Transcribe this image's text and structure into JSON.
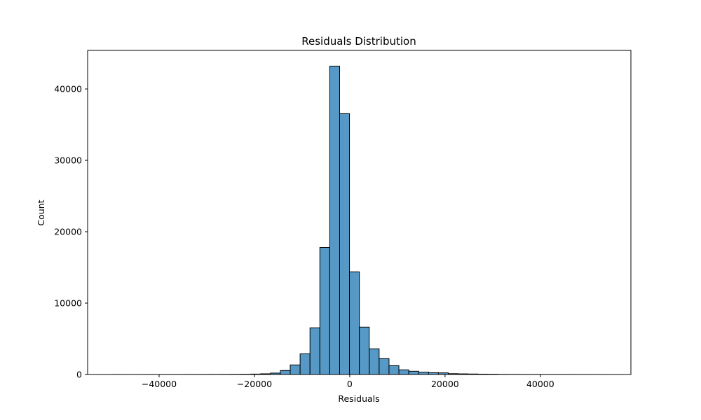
{
  "chart_data": {
    "type": "bar",
    "subtype": "histogram",
    "title": "Residuals Distribution",
    "xlabel": "Residuals",
    "ylabel": "Count",
    "xlim": [
      -55000,
      59000
    ],
    "ylim": [
      0,
      45400
    ],
    "xticks": [
      -40000,
      -20000,
      0,
      20000,
      40000
    ],
    "xtick_labels": [
      "−40000",
      "−20000",
      "0",
      "20000",
      "40000"
    ],
    "yticks": [
      0,
      10000,
      20000,
      30000,
      40000
    ],
    "ytick_labels": [
      "0",
      "10000",
      "20000",
      "30000",
      "40000"
    ],
    "grid": false,
    "bin_start": -49800,
    "bin_width": 2073,
    "counts": [
      5,
      4,
      4,
      5,
      5,
      6,
      6,
      8,
      10,
      12,
      15,
      20,
      25,
      35,
      60,
      100,
      200,
      560,
      1340,
      2900,
      6540,
      17800,
      43200,
      36540,
      14380,
      6640,
      3600,
      2220,
      1240,
      650,
      460,
      330,
      260,
      230,
      120,
      90,
      70,
      50,
      40,
      20,
      15,
      12,
      10,
      8,
      6,
      5,
      5,
      4,
      4,
      3
    ],
    "colors": {
      "bar_fill": "#5799c6",
      "bar_edge": "#000000"
    }
  }
}
